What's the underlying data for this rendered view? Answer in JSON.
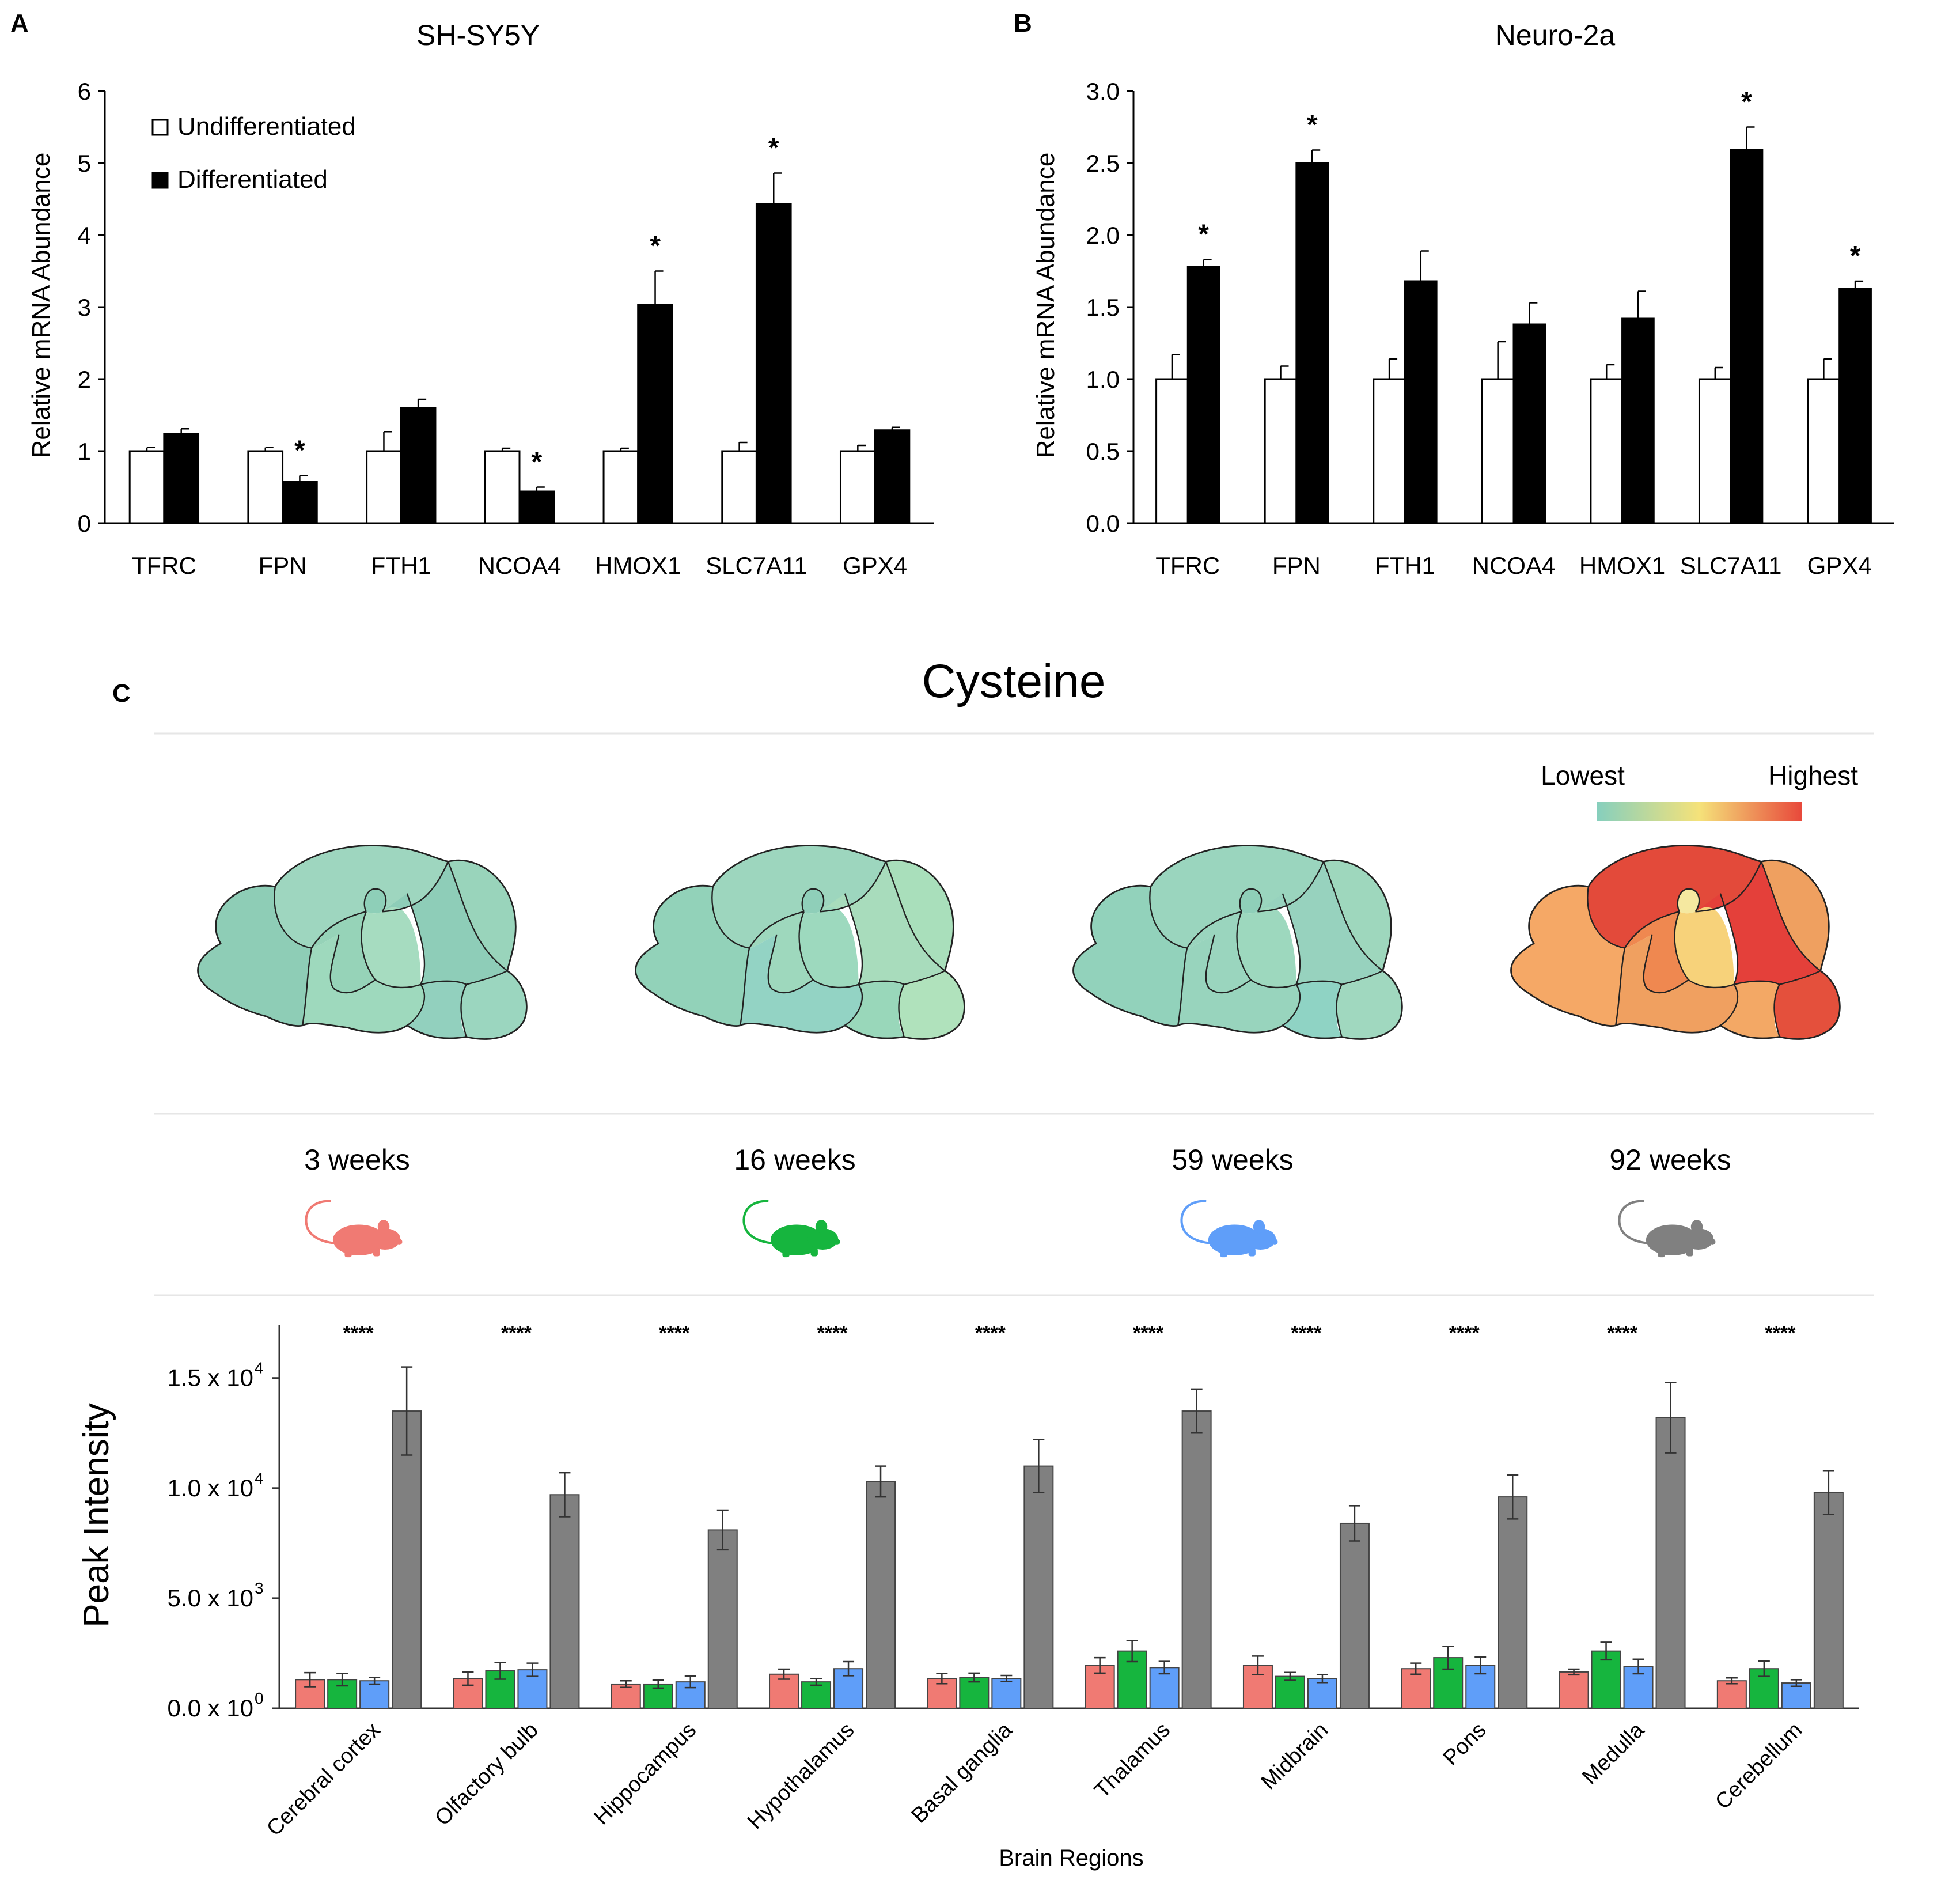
{
  "chart_data": [
    {
      "panel_label": "A",
      "type": "bar",
      "title": "SH-SY5Y",
      "xlabel": "",
      "ylabel": "Relative mRNA Abundance",
      "ylim": [
        0,
        6
      ],
      "yticks": [
        "0",
        "1",
        "2",
        "3",
        "4",
        "5",
        "6"
      ],
      "categories": [
        "TFRC",
        "FPN",
        "FTH1",
        "NCOA4",
        "HMOX1",
        "SLC7A11",
        "GPX4"
      ],
      "legend_position": "top-left",
      "series": [
        {
          "name": "Undifferentiated",
          "color": "#ffffff",
          "values": [
            1.0,
            1.0,
            1.0,
            1.0,
            1.0,
            1.0,
            1.0
          ],
          "errors": [
            0.05,
            0.05,
            0.27,
            0.04,
            0.04,
            0.12,
            0.08
          ]
        },
        {
          "name": "Differentiated",
          "color": "#000000",
          "values": [
            1.24,
            0.58,
            1.6,
            0.44,
            3.03,
            4.43,
            1.29
          ],
          "errors": [
            0.07,
            0.08,
            0.12,
            0.06,
            0.47,
            0.43,
            0.04
          ]
        }
      ],
      "significance": [
        "",
        "*",
        "",
        "*",
        "*",
        "*",
        ""
      ]
    },
    {
      "panel_label": "B",
      "type": "bar",
      "title": "Neuro-2a",
      "xlabel": "",
      "ylabel": "Relative mRNA Abundance",
      "ylim": [
        0,
        3.0
      ],
      "yticks": [
        "0.0",
        "0.5",
        "1.0",
        "1.5",
        "2.0",
        "2.5",
        "3.0"
      ],
      "categories": [
        "TFRC",
        "FPN",
        "FTH1",
        "NCOA4",
        "HMOX1",
        "SLC7A11",
        "GPX4"
      ],
      "series": [
        {
          "name": "Undifferentiated",
          "color": "#ffffff",
          "values": [
            1.0,
            1.0,
            1.0,
            1.0,
            1.0,
            1.0,
            1.0
          ],
          "errors": [
            0.17,
            0.09,
            0.14,
            0.26,
            0.1,
            0.08,
            0.14
          ]
        },
        {
          "name": "Differentiated",
          "color": "#000000",
          "values": [
            1.78,
            2.5,
            1.68,
            1.38,
            1.42,
            2.59,
            1.63
          ],
          "errors": [
            0.05,
            0.09,
            0.21,
            0.15,
            0.19,
            0.16,
            0.05
          ]
        }
      ],
      "significance": [
        "*",
        "*",
        "",
        "",
        "",
        "*",
        "*"
      ]
    },
    {
      "panel_label": "C",
      "type": "bar",
      "title": "Cysteine",
      "xlabel": "Brain Regions",
      "ylabel": "Peak Intensity",
      "ylim": [
        0,
        17400
      ],
      "yticks": [
        {
          "value": 0,
          "mantissa": "0.0 x 10",
          "exp": "0"
        },
        {
          "value": 5000,
          "mantissa": "5.0 x 10",
          "exp": "3"
        },
        {
          "value": 10000,
          "mantissa": "1.0 x 10",
          "exp": "4"
        },
        {
          "value": 15000,
          "mantissa": "1.5 x 10",
          "exp": "4"
        }
      ],
      "categories": [
        "Cerebral cortex",
        "Olfactory bulb",
        "Hippocampus",
        "Hypothalamus",
        "Basal ganglia",
        "Thalamus",
        "Midbrain",
        "Pons",
        "Medulla",
        "Cerebellum"
      ],
      "significance": "****",
      "series": [
        {
          "name": "3 weeks",
          "color": "#f07a73",
          "values": [
            1300,
            1350,
            1100,
            1550,
            1350,
            1950,
            1950,
            1800,
            1650,
            1250
          ],
          "errors": [
            320,
            300,
            150,
            230,
            230,
            350,
            420,
            250,
            130,
            130
          ]
        },
        {
          "name": "16 weeks",
          "color": "#16b53e",
          "values": [
            1300,
            1700,
            1100,
            1200,
            1400,
            2600,
            1450,
            2300,
            2600,
            1800
          ],
          "errors": [
            280,
            380,
            180,
            150,
            200,
            480,
            180,
            520,
            400,
            350
          ]
        },
        {
          "name": "59 weeks",
          "color": "#5f9ef9",
          "values": [
            1250,
            1750,
            1200,
            1800,
            1350,
            1850,
            1350,
            1950,
            1900,
            1150
          ],
          "errors": [
            150,
            300,
            260,
            320,
            140,
            280,
            180,
            380,
            330,
            150
          ]
        },
        {
          "name": "92 weeks",
          "color": "#808080",
          "values": [
            13500,
            9700,
            8100,
            10300,
            11000,
            13500,
            8400,
            9600,
            13200,
            9800
          ],
          "errors": [
            2000,
            1000,
            900,
            700,
            1200,
            1000,
            800,
            1000,
            1600,
            1000
          ]
        }
      ],
      "heatmap_legend": {
        "low_label": "Lowest",
        "high_label": "Highest",
        "colors": [
          "#86cfbd",
          "#f5e27a",
          "#e8493b"
        ]
      },
      "brain_maps": [
        {
          "timepoint": "3 weeks",
          "region_fill": [
            "#9ed6bf",
            "#8ecdb6",
            "#8ecfb8",
            "#8ecdb8",
            "#96d3b8",
            "#9ed9bd",
            "#a6dcc0",
            "#92d0be",
            "#99d4bb",
            "#9bd6bf"
          ]
        },
        {
          "timepoint": "16 weeks",
          "region_fill": [
            "#9dd6be",
            "#92d2b9",
            "#8fcfb9",
            "#a8dcbc",
            "#9ed8bd",
            "#93d3c4",
            "#9dd9be",
            "#99d7ba",
            "#a9dfbb",
            "#b0e2bc"
          ]
        },
        {
          "timepoint": "59 weeks",
          "region_fill": [
            "#9ad5be",
            "#92d2bb",
            "#8fcfb9",
            "#97d2be",
            "#9ad5be",
            "#98d4bd",
            "#9dd8be",
            "#8fd3c4",
            "#9ed7bd",
            "#a0d8bf"
          ]
        },
        {
          "timepoint": "92 weeks",
          "region_fill": [
            "#e34a3a",
            "#f5a866",
            "#f5e8a0",
            "#e4403a",
            "#ef8850",
            "#f0a060",
            "#f7d27a",
            "#f3a865",
            "#efa060",
            "#e4503c"
          ]
        }
      ],
      "timepoints": [
        "3 weeks",
        "16 weeks",
        "59 weeks",
        "92 weeks"
      ]
    }
  ]
}
